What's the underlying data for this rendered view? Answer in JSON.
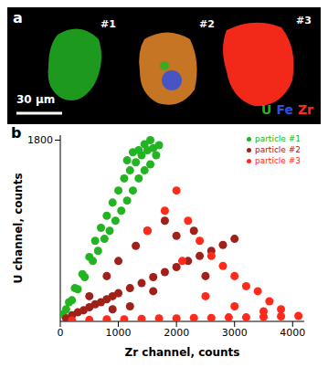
{
  "panel_a": {
    "label": "a",
    "particles": [
      "#1",
      "#2",
      "#3"
    ],
    "scale_bar": "30 μm",
    "channels": [
      {
        "name": "U",
        "color": "#22b422"
      },
      {
        "name": "Fe",
        "color": "#3050e0"
      },
      {
        "name": "Zr",
        "color": "#ff2a1a"
      }
    ]
  },
  "chart_data": {
    "type": "scatter",
    "panel_label": "b",
    "x_label": "Zr channel, counts",
    "y_label": "U channel, counts",
    "xlim": [
      0,
      4200
    ],
    "ylim": [
      0,
      1850
    ],
    "xticks": [
      0,
      1000,
      2000,
      3000,
      4000
    ],
    "yticks": [
      1800
    ],
    "grid": false,
    "legend": "upper right",
    "series": [
      {
        "name": "particle #1",
        "color": "#22b422",
        "marker": "circle",
        "x": [
          50,
          100,
          150,
          200,
          250,
          300,
          380,
          420,
          500,
          560,
          600,
          650,
          700,
          760,
          800,
          850,
          900,
          950,
          1000,
          1050,
          1100,
          1150,
          1200,
          1250,
          1300,
          1350,
          1400,
          1450,
          1500,
          1550,
          1600,
          1650,
          1700,
          1150,
          1250,
          1350,
          1450,
          1550
        ],
        "y": [
          70,
          120,
          190,
          210,
          330,
          320,
          470,
          440,
          640,
          600,
          800,
          700,
          930,
          820,
          1050,
          900,
          1180,
          1000,
          1300,
          1100,
          1420,
          1200,
          1500,
          1300,
          1580,
          1420,
          1650,
          1500,
          1700,
          1560,
          1720,
          1650,
          1750,
          1600,
          1680,
          1700,
          1760,
          1800
        ]
      },
      {
        "name": "particle #2",
        "color": "#a0201a",
        "marker": "circle",
        "x": [
          100,
          200,
          300,
          400,
          500,
          600,
          700,
          800,
          900,
          1000,
          1200,
          1400,
          1600,
          1800,
          2000,
          2200,
          2400,
          2600,
          2800,
          3000,
          500,
          800,
          1000,
          1300,
          1500,
          1800,
          2000,
          2300,
          1200,
          1600,
          2500,
          900
        ],
        "y": [
          30,
          60,
          90,
          110,
          140,
          170,
          190,
          220,
          250,
          280,
          330,
          380,
          440,
          490,
          540,
          600,
          650,
          700,
          760,
          820,
          250,
          450,
          600,
          750,
          900,
          1000,
          850,
          900,
          150,
          300,
          450,
          120
        ]
      },
      {
        "name": "particle #3",
        "color": "#ff2a1a",
        "marker": "circle",
        "x": [
          200,
          500,
          800,
          1100,
          1400,
          1700,
          2000,
          2300,
          2600,
          2900,
          3200,
          3500,
          3800,
          4100,
          1500,
          1800,
          2000,
          2200,
          2400,
          2600,
          2800,
          3000,
          3200,
          3400,
          3600,
          3800,
          2500,
          3000,
          3500,
          2100
        ],
        "y": [
          10,
          15,
          20,
          20,
          25,
          30,
          30,
          35,
          35,
          40,
          40,
          45,
          50,
          55,
          900,
          1100,
          1300,
          1000,
          800,
          650,
          550,
          450,
          350,
          300,
          200,
          120,
          250,
          150,
          100,
          600
        ]
      }
    ]
  }
}
